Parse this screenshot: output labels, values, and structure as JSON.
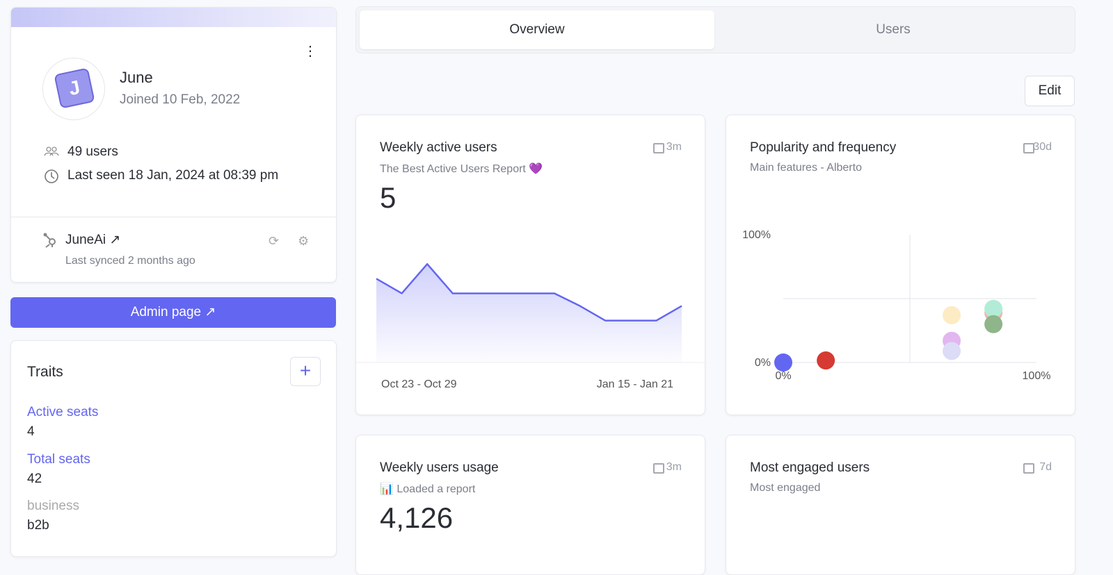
{
  "profile": {
    "avatar_letter": "J",
    "name": "June",
    "joined": "Joined 10 Feb, 2022",
    "users": "49 users",
    "last_seen": "Last seen 18 Jan, 2024 at 08:39 pm"
  },
  "integration": {
    "name": "JuneAi",
    "synced": "Last synced 2 months ago"
  },
  "admin_button": "Admin page",
  "traits": {
    "title": "Traits",
    "items": [
      {
        "label": "Active seats",
        "value": 4
      },
      {
        "label": "Total seats",
        "value": 42
      },
      {
        "label": "business",
        "value": "b2b"
      }
    ]
  },
  "tabs": [
    "Overview",
    "Users"
  ],
  "edit_button": "Edit",
  "cards": [
    {
      "title": "Weekly active users",
      "subtitle": "The Best Active Users Report 💜",
      "period": "3m",
      "headline": 5,
      "chart_data": {
        "type": "line",
        "categories": [
          "Oct 23 - Oct 29",
          null,
          null,
          null,
          null,
          null,
          null,
          null,
          null,
          null,
          null,
          null,
          "Jan 15 - Jan 21"
        ],
        "values": [
          4,
          3.3,
          4.7,
          3.3,
          3.3,
          3.3,
          3.3,
          3.3,
          2.7,
          2,
          2,
          2,
          2.7
        ],
        "ylim": [
          0,
          6
        ],
        "color": "#6366f1"
      }
    },
    {
      "title": "Popularity and frequency",
      "subtitle": "Main features - Alberto",
      "period": "30d",
      "chart_data": {
        "type": "scatter",
        "xlim": [
          0,
          100
        ],
        "ylim": [
          0,
          100
        ],
        "xticks": [
          {
            "value": 0,
            "label": "0%"
          },
          {
            "value": 100,
            "label": "100%"
          }
        ],
        "yticks": [
          {
            "value": 0,
            "label": "0%"
          },
          {
            "value": 100,
            "label": "100%"
          }
        ],
        "points": [
          {
            "x": 83,
            "y": 39,
            "color": "#f4b3a8"
          },
          {
            "x": 0,
            "y": 0,
            "color": "#6366f1"
          },
          {
            "x": 16.8,
            "y": 1.6,
            "color": "#d63a32"
          },
          {
            "x": 66.5,
            "y": 37,
            "color": "#fdebc4"
          },
          {
            "x": 83,
            "y": 42,
            "color": "#b3ecd6"
          },
          {
            "x": 83,
            "y": 30,
            "color": "#8fb58a"
          },
          {
            "x": 66.5,
            "y": 17,
            "color": "#e2b6ef"
          },
          {
            "x": 66.5,
            "y": 9,
            "color": "#dcdcf7"
          }
        ]
      }
    },
    {
      "title": "Weekly users usage",
      "subtitle": "📊 Loaded a report",
      "period": "3m",
      "headline": "4,126"
    },
    {
      "title": "Most engaged users",
      "subtitle": "Most engaged",
      "period": "7d"
    }
  ]
}
